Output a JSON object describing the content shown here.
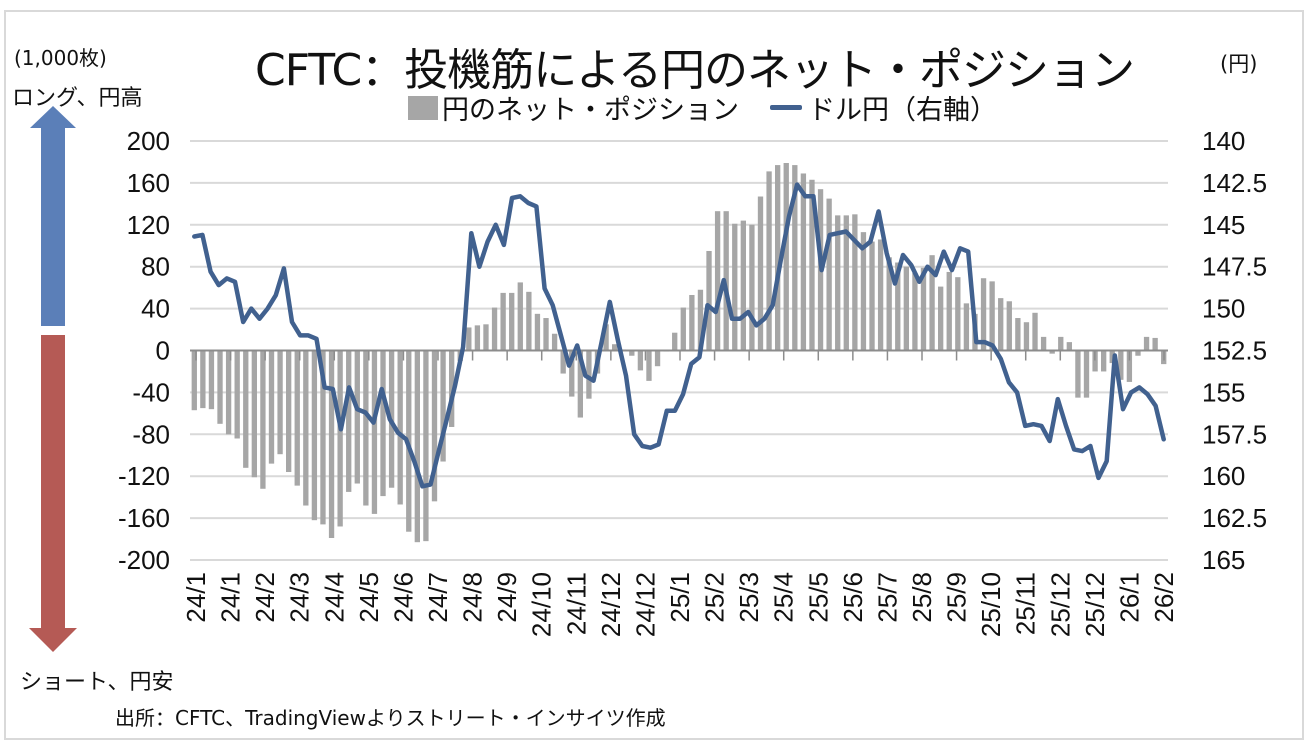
{
  "title": "CFTC：投機筋による円のネット・ポジション",
  "left_unit": "(1,000枚)",
  "long_label": "ロング、円高",
  "short_label": "ショート、円安",
  "right_unit": "(円)",
  "source": "出所：CFTC、TradingViewよりストリート・インサイツ作成",
  "colors": {
    "bar": "#a6a6a6",
    "line": "#41618f",
    "up_arrow": "#5b7fb8",
    "down_arrow": "#b55a55",
    "grid": "#d9d9d9"
  },
  "chart_data": {
    "type": "bar+line",
    "title": "CFTC：投機筋による円のネット・ポジション",
    "legend": [
      {
        "name": "円のネット・ポジション",
        "type": "bar"
      },
      {
        "name": "ドル円（右軸）",
        "type": "line"
      }
    ],
    "legend_position": "top",
    "ylim_left": [
      -200,
      200
    ],
    "yticks_left": [
      "200",
      "160",
      "120",
      "80",
      "40",
      "0",
      "-40",
      "-80",
      "-120",
      "-160",
      "-200"
    ],
    "ylim_right": [
      140,
      165
    ],
    "right_axis_reversed": true,
    "yticks_right": [
      "140",
      "142.5",
      "145",
      "147.5",
      "150",
      "152.5",
      "155",
      "157.5",
      "160",
      "162.5",
      "165"
    ],
    "xtick_labels": [
      "24/1",
      "24/1",
      "24/2",
      "24/3",
      "24/4",
      "24/5",
      "24/6",
      "24/7",
      "24/8",
      "24/9",
      "24/10",
      "24/11",
      "24/12",
      "24/12",
      "25/1",
      "25/2",
      "25/3",
      "25/4",
      "25/5",
      "25/6",
      "25/7",
      "25/8",
      "25/9",
      "25/10",
      "25/11",
      "25/12",
      "25/12",
      "26/1",
      "26/2"
    ],
    "grid": true,
    "series": [
      {
        "name": "円のネット・ポジション",
        "type": "bar",
        "values": [
          -57,
          -55,
          -56,
          -70,
          -80,
          -84,
          -112,
          -121,
          -132,
          -108,
          -99,
          -116,
          -129,
          -148,
          -162,
          -166,
          -179,
          -168,
          -135,
          -127,
          -148,
          -156,
          -139,
          -131,
          -147,
          -173,
          -183,
          -182,
          -144,
          -106,
          -73,
          -10,
          22,
          24,
          25,
          41,
          55,
          55,
          65,
          56,
          35,
          31,
          16,
          -22,
          -44,
          -64,
          -46,
          -22,
          25,
          6,
          1,
          -5,
          -19,
          -29,
          -15,
          -1,
          17,
          41,
          53,
          58,
          95,
          133,
          133,
          121,
          124,
          120,
          147,
          171,
          177,
          179,
          177,
          169,
          163,
          154,
          145,
          129,
          129,
          130,
          113,
          104,
          106,
          89,
          84,
          80,
          74,
          79,
          91,
          61,
          75,
          70,
          45,
          35,
          69,
          66,
          50,
          47,
          31,
          27,
          36,
          13,
          -3,
          13,
          8,
          -45,
          -45,
          -20,
          -20,
          -12,
          -28,
          -30,
          -5,
          13,
          12,
          -13
        ]
      },
      {
        "name": "ドル円（右軸）",
        "type": "line",
        "values": [
          145.7,
          145.6,
          147.8,
          148.6,
          148.2,
          148.4,
          150.8,
          150.0,
          150.6,
          150.0,
          149.2,
          147.6,
          150.8,
          151.6,
          151.6,
          151.8,
          154.7,
          154.8,
          157.2,
          154.7,
          156.0,
          156.2,
          156.8,
          154.8,
          156.6,
          157.4,
          157.8,
          159.1,
          160.6,
          160.5,
          158.5,
          156.6,
          154.6,
          152.3,
          145.5,
          147.5,
          146.0,
          145.0,
          146.2,
          143.4,
          143.3,
          143.7,
          143.9,
          148.8,
          149.8,
          151.6,
          153.4,
          152.2,
          154.0,
          154.3,
          152.0,
          149.6,
          151.9,
          154.0,
          157.5,
          158.2,
          158.3,
          158.1,
          156.1,
          156.1,
          155.1,
          153.3,
          152.9,
          149.8,
          150.2,
          148.3,
          150.6,
          150.6,
          150.2,
          151.0,
          150.6,
          149.8,
          147.1,
          144.5,
          142.6,
          143.3,
          143.3,
          147.7,
          145.6,
          145.5,
          145.4,
          145.9,
          146.4,
          146.0,
          144.2,
          146.7,
          148.5,
          146.8,
          147.4,
          148.4,
          147.5,
          148.0,
          146.6,
          147.7,
          146.4,
          146.6,
          152.0,
          152.0,
          152.2,
          153.0,
          154.4,
          155.0,
          157.0,
          156.9,
          157.0,
          157.9,
          155.4,
          157.0,
          158.4,
          158.5,
          158.2,
          160.1,
          159.1,
          152.8,
          156.0,
          155.0,
          154.7,
          155.1,
          155.8,
          157.8
        ]
      }
    ]
  }
}
